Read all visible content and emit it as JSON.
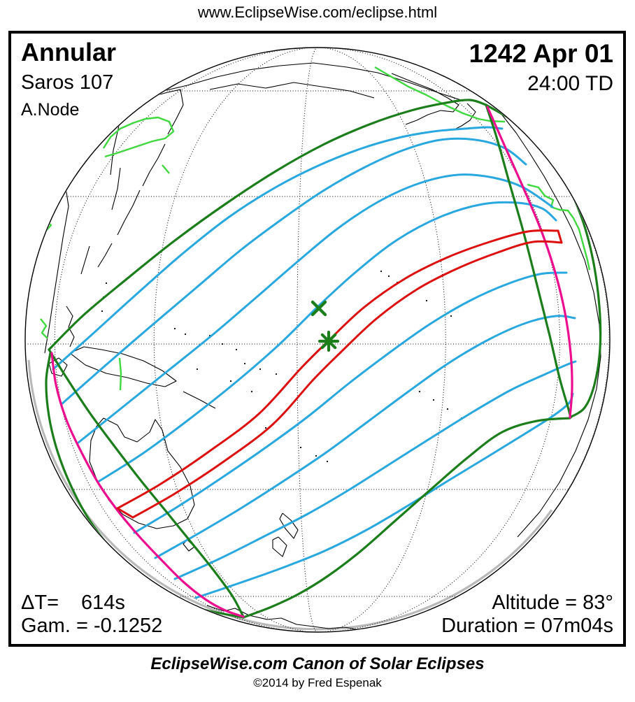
{
  "header": {
    "url": "www.EclipseWise.com/eclipse.html"
  },
  "panel": {
    "eclipse_type": "Annular",
    "saros": "Saros 107",
    "node": "A.Node",
    "date": "1242 Apr 01",
    "time": "24:00 TD",
    "delta_t_label": "ΔT=",
    "delta_t_value": "614s",
    "gamma": "Gam. = -0.1252",
    "altitude": "Altitude = 83°",
    "duration": "Duration = 07m04s"
  },
  "footer": {
    "title": "EclipseWise.com Canon of Solar Eclipses",
    "copyright": "©2014 by Fred Espenak"
  },
  "map": {
    "colors": {
      "penumbral_limit_green": "#1b7e1b",
      "highlight_coast_green": "#3fd83f",
      "magnitude_contour_cyan": "#29a8e0",
      "central_path_red": "#dd1010",
      "sunrise_sunset_magenta": "#ec0e8e",
      "limb_boundary_gray": "#b9b9b9",
      "coast_black": "#000000",
      "marker_green": "#1b7e1b"
    },
    "markers": [
      {
        "name": "greatest-eclipse",
        "symbol": "asterisk"
      },
      {
        "name": "subsolar-point",
        "symbol": "x-cross"
      }
    ]
  }
}
